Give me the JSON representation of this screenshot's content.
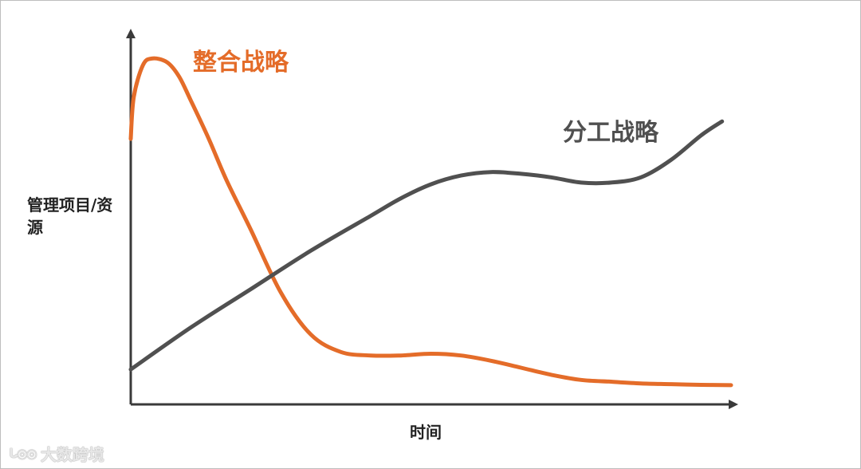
{
  "colors": {
    "integrate": "#E46C29",
    "divide": "#505050",
    "axis": "#3a3a3a"
  },
  "watermark": {
    "logo": "ᒐ◎◎",
    "text": "大数跨境"
  },
  "chart_data": {
    "type": "line",
    "title": "",
    "xlabel": "时间",
    "ylabel": "管理项目/资源",
    "grid": false,
    "xlim": [
      0,
      100
    ],
    "ylim": [
      0,
      100
    ],
    "series": [
      {
        "name": "整合战略",
        "color": "#E46C29",
        "x": [
          0,
          0.5,
          2,
          3.5,
          6,
          8,
          10,
          13,
          16,
          20,
          25,
          30,
          35,
          40,
          45,
          50,
          55,
          60,
          65,
          70,
          75,
          80,
          85,
          90,
          95,
          100
        ],
        "y": [
          76,
          88,
          97,
          99,
          98,
          94,
          87,
          76,
          64,
          50,
          32,
          20,
          15,
          14,
          14,
          14.5,
          14,
          12.5,
          10.5,
          8.5,
          7,
          6.5,
          6,
          5.8,
          5.6,
          5.5
        ]
      },
      {
        "name": "分工战略",
        "color": "#505050",
        "x": [
          0,
          10,
          20,
          30,
          40,
          45,
          50,
          55,
          60,
          65,
          70,
          75,
          80,
          85,
          90,
          95,
          98.5
        ],
        "y": [
          10,
          22,
          33,
          44,
          54,
          59,
          63,
          65.5,
          66.5,
          66,
          65,
          63.5,
          63.5,
          65,
          70,
          77,
          81
        ]
      }
    ]
  }
}
